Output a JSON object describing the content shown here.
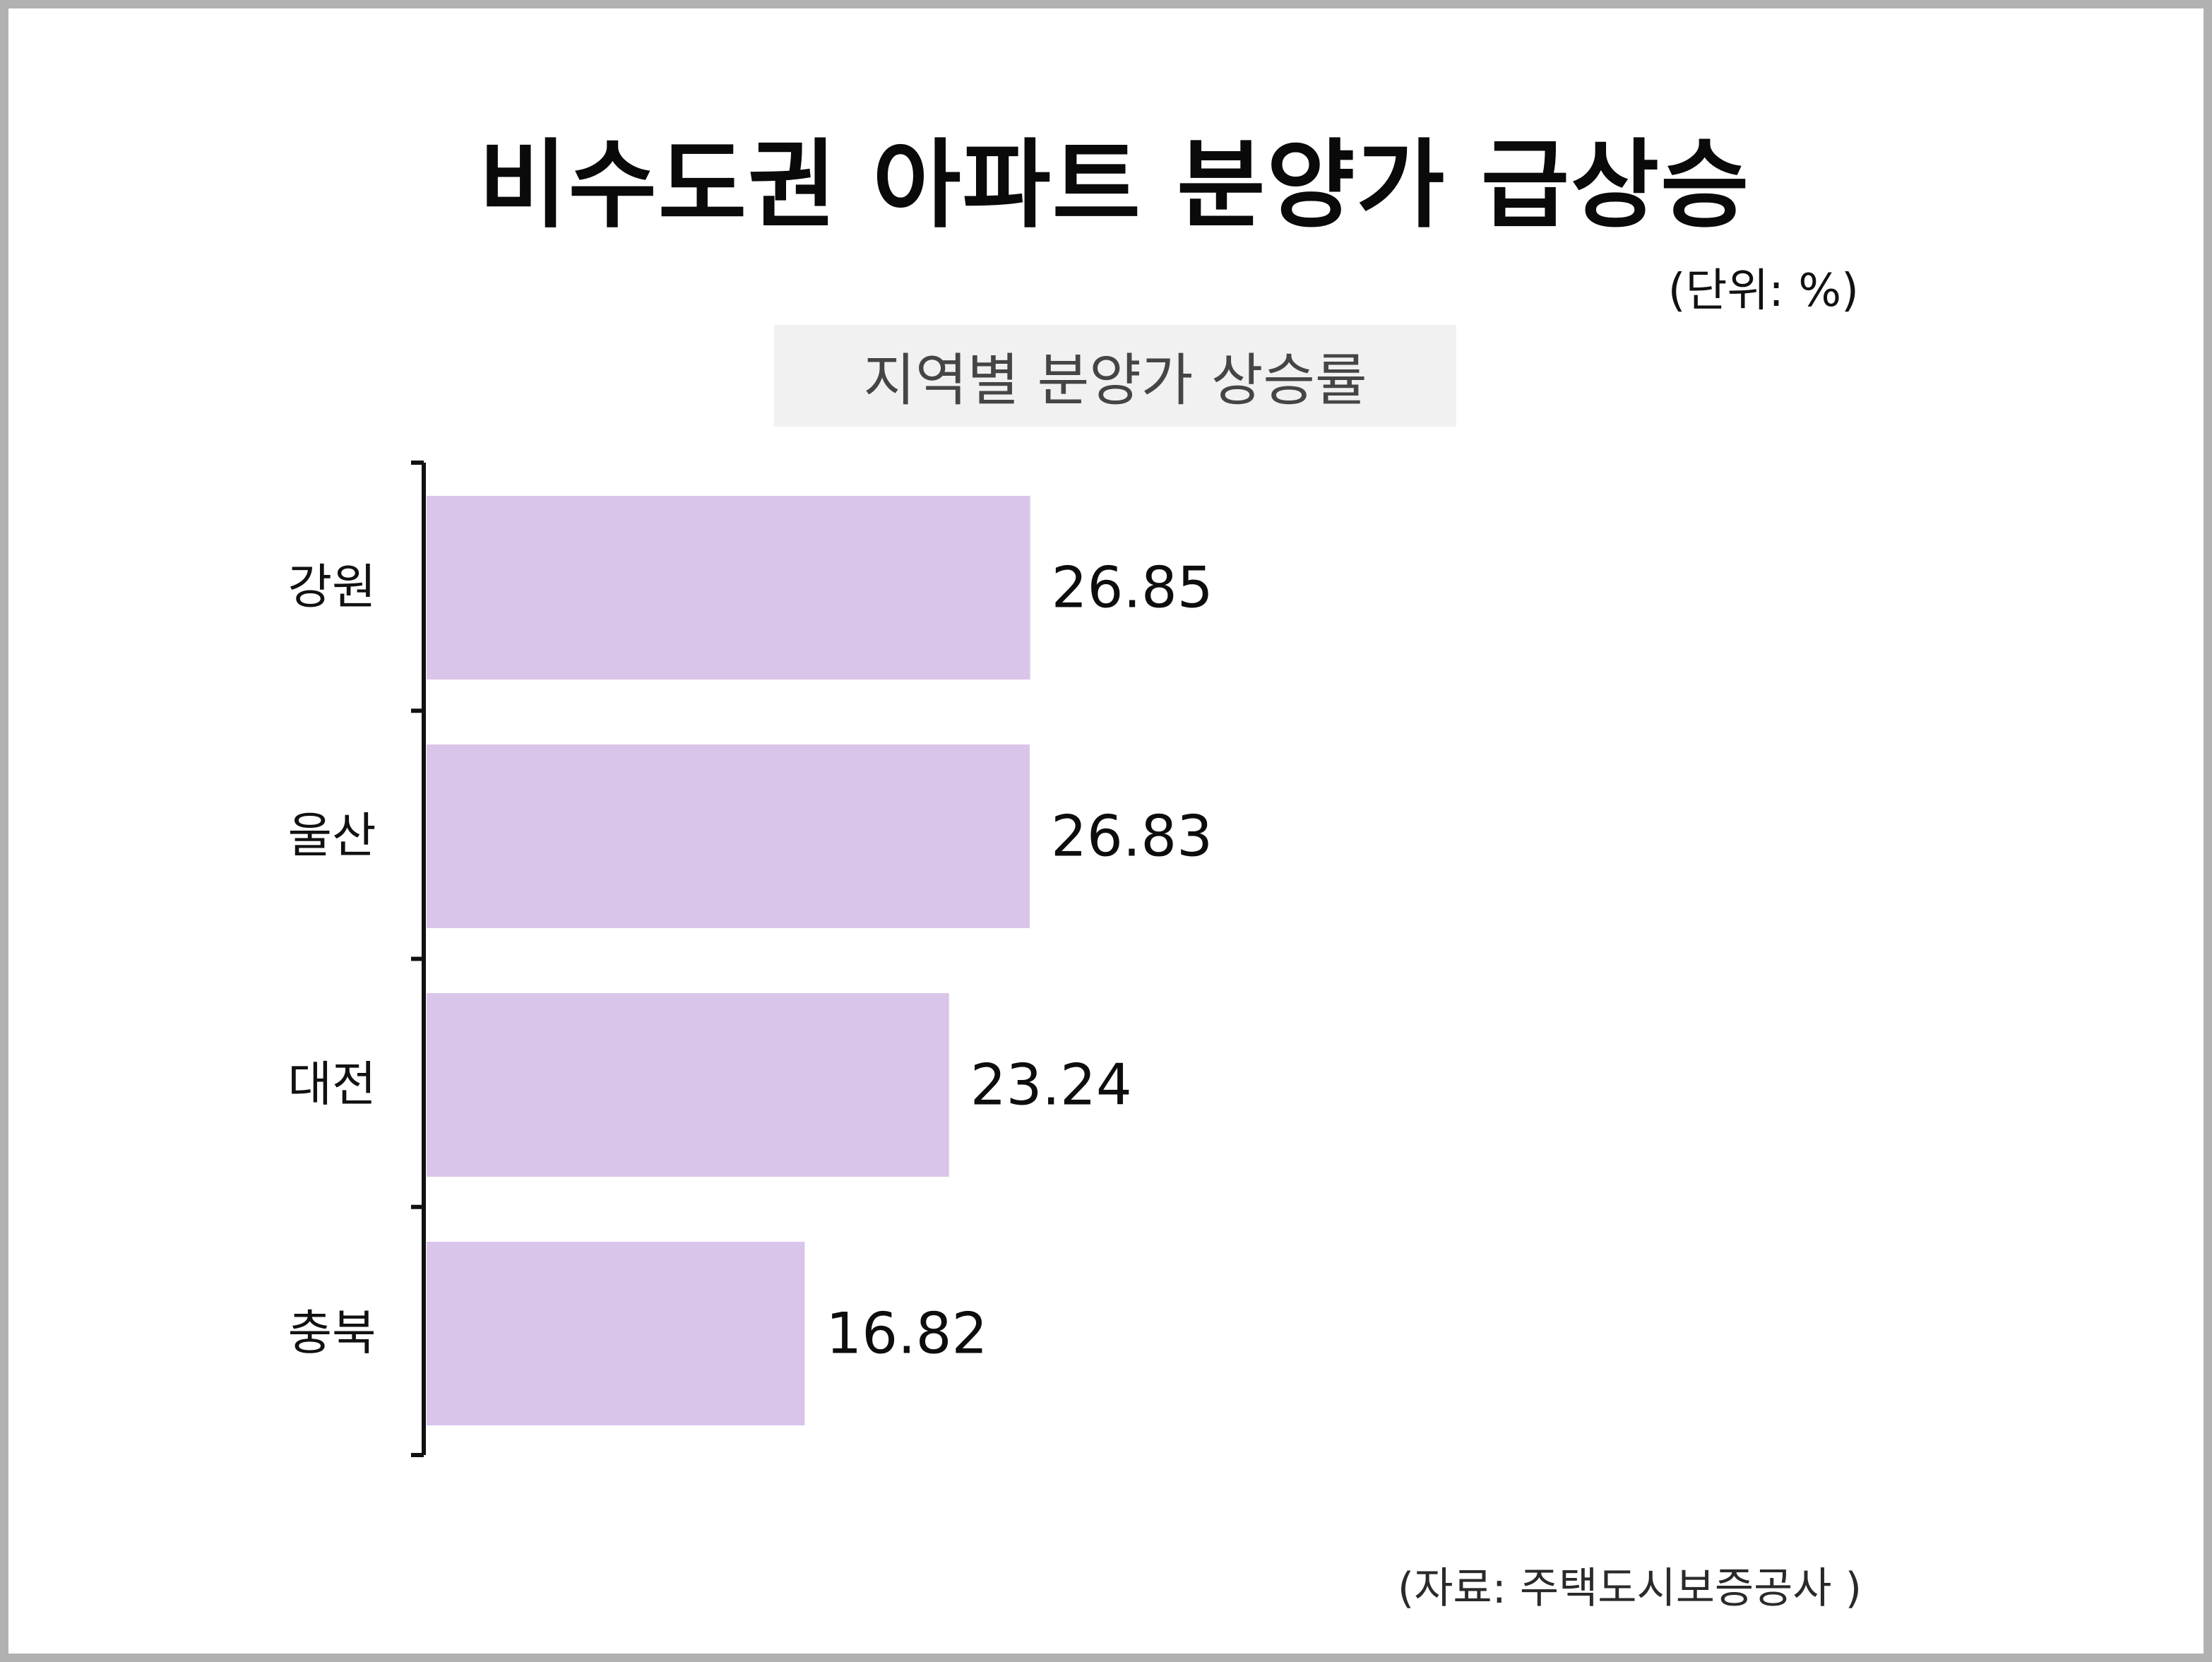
{
  "title": "비수도권 아파트 분양가 급상승",
  "unit": "(단위: %)",
  "chart_data": {
    "type": "bar",
    "orientation": "horizontal",
    "title": "지역별 분양가 상승률",
    "categories": [
      "강원",
      "울산",
      "대전",
      "충북"
    ],
    "values": [
      26.85,
      26.83,
      23.24,
      16.82
    ],
    "value_labels": [
      "26.85",
      "26.83",
      "23.24",
      "16.82"
    ],
    "xlim": [
      0,
      30
    ],
    "grid": false,
    "bar_color": "#dac5ea"
  },
  "source": "(자료: 주택도시보증공사 )"
}
